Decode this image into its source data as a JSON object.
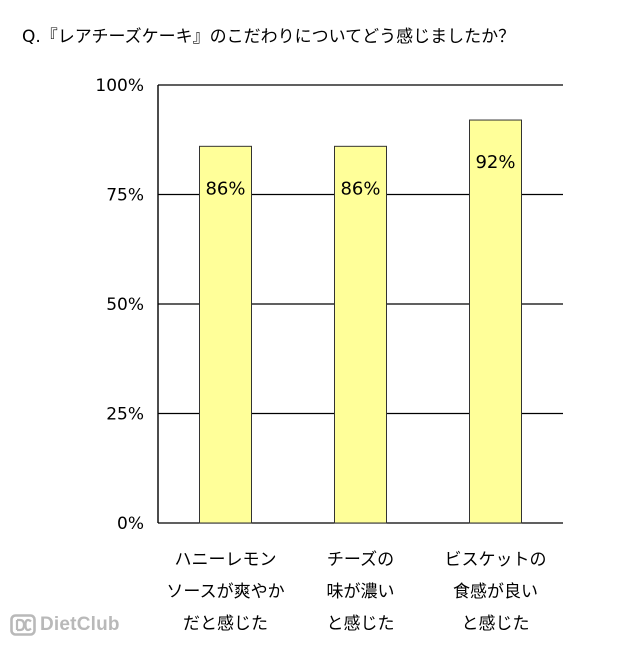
{
  "title": "Q.『レアチーズケーキ』のこだわりについてどう感じましたか？",
  "watermark": "DietClub",
  "colors": {
    "bar_fill": "#ffff99",
    "bar_stroke": "#333333",
    "grid": "#000000",
    "watermark": "#b9b9b9"
  },
  "chart_data": {
    "type": "bar",
    "categories": [
      [
        "ハニーレモン",
        "ソースが爽やか",
        "だと感じた"
      ],
      [
        "チーズの",
        "味が濃い",
        "と感じた"
      ],
      [
        "ビスケットの",
        "食感が良い",
        "と感じた"
      ]
    ],
    "values": [
      86,
      86,
      92
    ],
    "data_labels": [
      "86%",
      "86%",
      "92%"
    ],
    "ylim": [
      0,
      100
    ],
    "yticks": [
      0,
      25,
      50,
      75,
      100
    ],
    "ytick_labels": [
      "0%",
      "25%",
      "50%",
      "75%",
      "100%"
    ],
    "grid": true,
    "legend": false
  }
}
